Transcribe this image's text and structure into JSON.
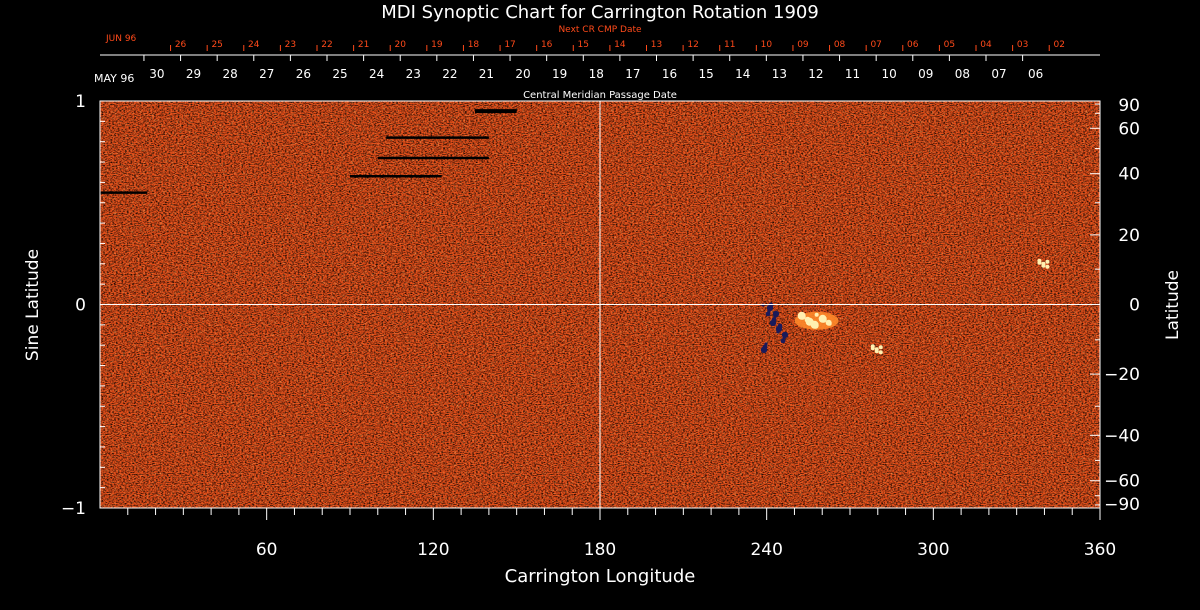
{
  "chart_data": {
    "type": "heatmap",
    "title": "MDI Synoptic Chart for Carrington Rotation 1909",
    "xlabel": "Carrington Longitude",
    "ylabel_left": "Sine Latitude",
    "ylabel_right": "Latitude",
    "xlim": [
      0,
      360
    ],
    "ylim": [
      -1,
      1
    ],
    "x_ticks": [
      60,
      120,
      180,
      240,
      300,
      360
    ],
    "y_ticks_left": [
      {
        "value": 1,
        "label": "1"
      },
      {
        "value": 0,
        "label": "0"
      },
      {
        "value": -1,
        "label": "−1"
      }
    ],
    "y_ticks_right": [
      {
        "deg": 90,
        "label": "90"
      },
      {
        "deg": 60,
        "label": "60"
      },
      {
        "deg": 40,
        "label": "40"
      },
      {
        "deg": 20,
        "label": "20"
      },
      {
        "deg": 0,
        "label": "0"
      },
      {
        "deg": -20,
        "label": "−20"
      },
      {
        "deg": -40,
        "label": "−40"
      },
      {
        "deg": -60,
        "label": "−60"
      },
      {
        "deg": -90,
        "label": "−90"
      }
    ],
    "top_axis_cmp": {
      "caption": "Central Meridian Passage Date",
      "month_label": "MAY 96",
      "dates": [
        "30",
        "29",
        "28",
        "27",
        "26",
        "25",
        "24",
        "23",
        "22",
        "21",
        "20",
        "19",
        "18",
        "17",
        "16",
        "15",
        "14",
        "13",
        "12",
        "11",
        "10",
        "09",
        "08",
        "07",
        "06"
      ],
      "first_longitude": 20.5,
      "step": 13.18
    },
    "top_axis_next_cmp": {
      "caption": "Next CR CMP Date",
      "month_label": "JUN 96",
      "dates": [
        "26",
        "25",
        "24",
        "23",
        "22",
        "21",
        "20",
        "19",
        "18",
        "17",
        "16",
        "15",
        "14",
        "13",
        "12",
        "11",
        "10",
        "09",
        "08",
        "07",
        "06",
        "05",
        "04",
        "03",
        "02"
      ],
      "first_longitude": 29,
      "step": 13.18
    },
    "grid_lines": {
      "longitude": 180,
      "sine_latitude": 0
    },
    "features": [
      {
        "kind": "active-region-positive",
        "longitude": 258,
        "sine_latitude": -0.08
      },
      {
        "kind": "active-region-negative",
        "longitude": 243,
        "sine_latitude": -0.12
      },
      {
        "kind": "plage-positive",
        "longitude": 280,
        "sine_latitude": -0.22
      },
      {
        "kind": "plage-positive",
        "longitude": 340,
        "sine_latitude": 0.2
      },
      {
        "kind": "data-gap",
        "lon_start": 135,
        "lon_end": 150,
        "sine_latitude": 0.95
      },
      {
        "kind": "data-gap",
        "lon_start": 103,
        "lon_end": 140,
        "sine_latitude": 0.82
      },
      {
        "kind": "data-gap",
        "lon_start": 100,
        "lon_end": 140,
        "sine_latitude": 0.72
      },
      {
        "kind": "data-gap",
        "lon_start": 90,
        "lon_end": 123,
        "sine_latitude": 0.63
      },
      {
        "kind": "data-gap",
        "lon_start": 0,
        "lon_end": 17,
        "sine_latitude": 0.55
      }
    ],
    "colors": {
      "background": "#000000",
      "field_base": "#e8501a",
      "field_dark": "#b32a08",
      "field_light": "#ff8a2a",
      "negative": "#1a1a5a",
      "positive": "#fff0b0",
      "axis": "#ffffff",
      "next_cmp": "#ff4a1a"
    }
  }
}
